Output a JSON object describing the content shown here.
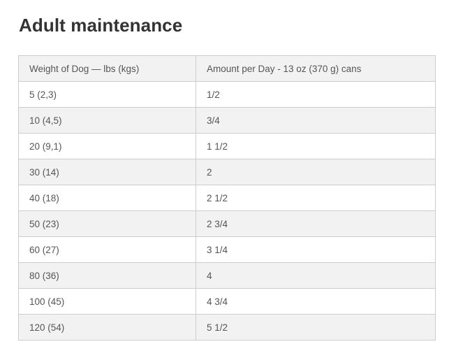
{
  "page": {
    "title": "Adult maintenance"
  },
  "table": {
    "headers": [
      "Weight of Dog — lbs (kgs)",
      "Amount per Day - 13 oz (370 g) cans"
    ],
    "rows": [
      [
        "5 (2,3)",
        "1/2"
      ],
      [
        "10 (4,5)",
        "3/4"
      ],
      [
        "20 (9,1)",
        "1 1/2"
      ],
      [
        "30 (14)",
        "2"
      ],
      [
        "40 (18)",
        "2 1/2"
      ],
      [
        "50 (23)",
        "2 3/4"
      ],
      [
        "60 (27)",
        "3 1/4"
      ],
      [
        "80 (36)",
        "4"
      ],
      [
        "100 (45)",
        "4 3/4"
      ],
      [
        "120 (54)",
        "5 1/2"
      ]
    ]
  },
  "colors": {
    "title_text": "#333333",
    "body_text": "#555555",
    "stripe": "#f2f2f2",
    "border": "#cccccc"
  }
}
